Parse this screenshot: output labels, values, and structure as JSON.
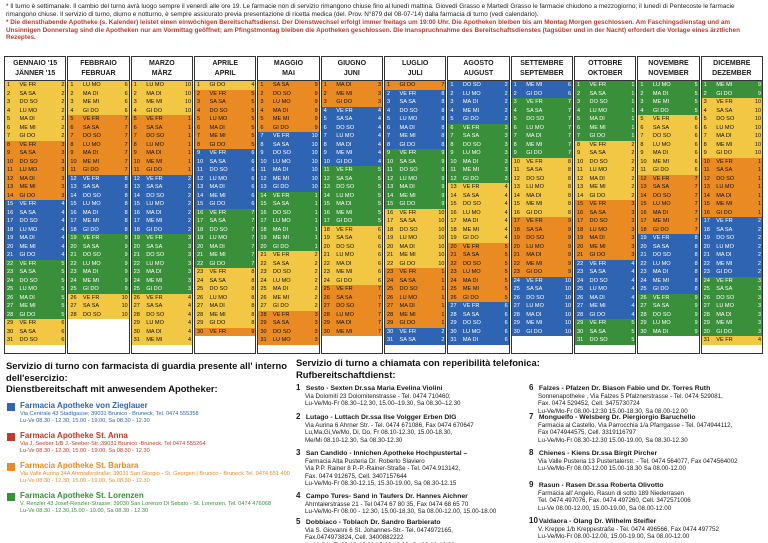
{
  "notes": {
    "n1": "* Il turno è settimanale. Il cambio del turno avrà luogo sempre il venerdì alle ore 19. Le farmacie non di servizio rimangono chiuse fino al lunedì mattina. Giovedì Grasso e Martedì Grasso le farmacie chiudono a mezzogiorno; il lunedì di Pentecoste le farmacie rimangono chiuse. Il servizio di turno, diurno e notturno, è sempre assicurato previa presentazione di ricetta medica (del. Prov. N°879 del 08-07-'14) dalla farmacia di turno (vedi calendario).",
    "n2": "* Die diensthabende Apotheke (s. Kalender) leistet einen einwöchigen Bereitschaftsdienst. Der Dienstwechsel erfolgt immer freitags um 19:00 Uhr. Die Apotheken bleiben bis am Montag Morgen geschlossen. Am Faschingsdienstag und am Unsinnigen Donnerstag sind die Apotheken nur am Vormittag geöffnet; am Pfingstmontag bleiben die Apotheken geschlossen. Die Inanspruchnahme des Bereitschaftsdienstes (tagsüber und in der Nacht) erfordert die Vorlage eines ärztlichen Rezeptes."
  },
  "calendar": [
    {
      "it": "GENNAIO '15",
      "de": "JÄNNER '15",
      "first": 4,
      "len": 31
    },
    {
      "it": "FEBBRAIO",
      "de": "FEBRUAR",
      "first": 0,
      "len": 28
    },
    {
      "it": "MARZO",
      "de": "MÄRZ",
      "first": 0,
      "len": 31
    },
    {
      "it": "APRILE",
      "de": "APRIL",
      "first": 3,
      "len": 30
    },
    {
      "it": "MAGGIO",
      "de": "MAI",
      "first": 5,
      "len": 31
    },
    {
      "it": "GIUGNO",
      "de": "JUNI",
      "first": 1,
      "len": 30
    },
    {
      "it": "LUGLIO",
      "de": "JULI",
      "first": 3,
      "len": 31
    },
    {
      "it": "AGOSTO",
      "de": "AUGUST",
      "first": 6,
      "len": 31
    },
    {
      "it": "SETTEMBRE",
      "de": "SEPTEMBER",
      "first": 2,
      "len": 30
    },
    {
      "it": "OTTOBRE",
      "de": "OKTOBER",
      "first": 4,
      "len": 31
    },
    {
      "it": "NOVEMBRE",
      "de": "NOVEMBER",
      "first": 0,
      "len": 30
    },
    {
      "it": "DICEMBRE",
      "de": "DEZEMBER",
      "first": 2,
      "len": 31
    }
  ],
  "weekdays": [
    "LU MO",
    "MA DI",
    "ME MI",
    "GI DO",
    "VE FR",
    "SA SA",
    "DO SO"
  ],
  "colors": {
    "g": "#3a8f3a",
    "y": "#f2c744",
    "o": "#e98a23",
    "b": "#2f64b3"
  },
  "left": {
    "title1": "Servizio di turno con farmacista di guardia presente all' interno dell'esercizio:",
    "title2": "Dienstbereitschaft mit anwesendem Apotheker:",
    "items": [
      {
        "color": "#2f64b3",
        "name": "Farmacia Apotheke von Zieglauer",
        "addr": "Via Centrale 43 Stadtgasse; 39031 Brunico - Bruneck, Tel. 0474 555358",
        "hours": "Lu-Ve 08.30 - 12.30, 15.00 - 19.00, Sa 08.30 - 12.30"
      },
      {
        "color": "#c0392b",
        "name": "Farmacia Apotheke St. Anna",
        "addr": "Via J. Seeber 1/B J.-Seeber-Str.;39031 Brunico -Bruneck. Tel 0474 555264",
        "hours": "Lu-Ve 08.30 - 12.30, 15.00 - 19.00, Sa 08.30 - 12.30"
      },
      {
        "color": "#e98a23",
        "name": "Farmacia Apotheke St. Barbara",
        "addr": "Via Valle Aurina 34A Ahrntalerstraße; 39031 San Giorgio - St. Georgen | Brunico - Bruneck Tel. 0474 551 400",
        "hours": "Lu-Ve 08.30 - 12.30, 15.00 - 19.00, Sa 08.30 - 12.30"
      },
      {
        "color": "#3a8f3a",
        "name": "Farmacia Apotheke St. Lorenzen",
        "addr": "V. Renzler 43 Josef-Renzler-Strasse; 39030 San Lorenzo Di Sebato - St. Lorenzen, Tel. 0474 476068",
        "hours": "Lu-Ve 08.30 - 12.30,15.00 - 19.00, Sa 08.30 - 12.30"
      }
    ]
  },
  "right": {
    "title1": "Servizio di turno a chiamata con reperibilità telefonica:",
    "title2": "Rufbereitschaftdienst:",
    "items": [
      {
        "n": "1",
        "t": "Sesto - Sexten Dr.ssa Maria Evelina Violini",
        "l": [
          "Via Dolomiti 23 Dolomitenstrasse - Tel. 0474 710460;",
          "Lu-Ve/Mo-Fr 08.30–12.30, 15.00–19.30, Sa 08.30–12.30"
        ]
      },
      {
        "n": "2",
        "t": "Lutago - Luttach Dr.ssa Ilse Volgger Erben DIG",
        "l": [
          "Via Aurina 6 Ahrner Str. - Tel. 0474 671086, Fax 0474 670647",
          "Lu,Ma,Gi,Ve/Mo, Di, Do, Fr 08.10-12.30, 15.00-18.30,",
          "Me/Mi 08.10-12.30, Sa 08.30-12.30"
        ]
      },
      {
        "n": "3",
        "t": "San Candido - Innichen Apotheke Hochpustertal –",
        "l": [
          "Farmacia Alta Pusteria Dr. Roberto Slaviero",
          "Via P.P. Rainer 8 P.-P.-Rainer-Straße - Tel. 0474.913142,",
          "Fax. 0474 912675, Cell. 3407157644",
          "Lu-Ve/Mo-Fr 08.30-12.15, 15.30-19.00, Sa 08.30-12.15"
        ]
      },
      {
        "n": "4",
        "t": "Campo Tures- Sand in Taufers Dr. Hannes Aichner",
        "l": [
          "Ahrntalerstrasse 21 - Tel 0474 67 80 35, Fax 0474 68 65 70",
          "Lu-Ve/Mo-Fr 08.00 - 12.30, 15.00-18.30, Sa 08.00-12.00, 15.00-18.00"
        ]
      },
      {
        "n": "5",
        "t": "Dobbiaco - Toblach Dr. Sandro Barbierato",
        "l": [
          "Via S. Giovanni 6 St. Johannes-Str.- Tel. 0474972165,",
          "Fax.0474973824, Cell. 3400882222",
          "Lu-Ve/Mo-Fr 08.10-12.00 15.30-19.00, Sa 08.10-12.00"
        ]
      },
      {
        "n": "6",
        "t": "Falzes - Pfalzen Dr. Biason Fabio und Dr. Torres Ruth",
        "l": [
          "Sonnenapotheke , Via Falzes 5 Pfalznerstrasse - Tel. 0474 529081,",
          "Fax. 0474 529452, Cell. 3475730724",
          "Lu-Ve/Mo-Fr 08.00-12:30 15.00-18.30, Sa 08.00-12.00"
        ]
      },
      {
        "n": "7",
        "t": "Monguelfo - Welsberg Dr. Piergiorgio Baruchello",
        "l": [
          "Farmacia al Castello, Via Parrocchia 1/a Pfarrgasse - Tel. 0474944112,",
          "Fax 0474944575, Cell. 3319116797",
          "Lu-Ve/Mo-Fr 08.30-12.30 15.00-19.00, Sa 08.30-12.30"
        ]
      },
      {
        "n": "8",
        "t": "Chienes - Kiens Dr.ssa Birgit Pircher",
        "l": [
          "Via Valle Pusteria 13 Pustertalerstr. - Tel. 0474 564077, Fax 0474564002",
          "Lu-Ve/Mo-Fr 08.00-12.00 15.00-18.30 Sa 08.00-12.00"
        ]
      },
      {
        "n": "9",
        "t": "Rasun - Rasen Dr.ssa Roberta Olivotto",
        "l": [
          "Farmacia all' Angelo, Rasun di sotto 189 Niederrasen",
          "Tel. 0474 497076, Fax. 0474 497260, Cell. 3472571006",
          "Lu-Ve 08.00-12.00, 15.00-19.00, Sa 08.00-12.00"
        ]
      },
      {
        "n": "10",
        "t": "Valdaora - Olang Dr. Wilhelm Steifler",
        "l": [
          "V. Kreppe 1/b Kreppestraße - Tel. 0474 496566, Fax 0474 497752",
          "Lu-Ve/Mo-Fr 08.00-12.00, 15.00-19.00, Sa 08.00-12.00"
        ]
      }
    ]
  }
}
